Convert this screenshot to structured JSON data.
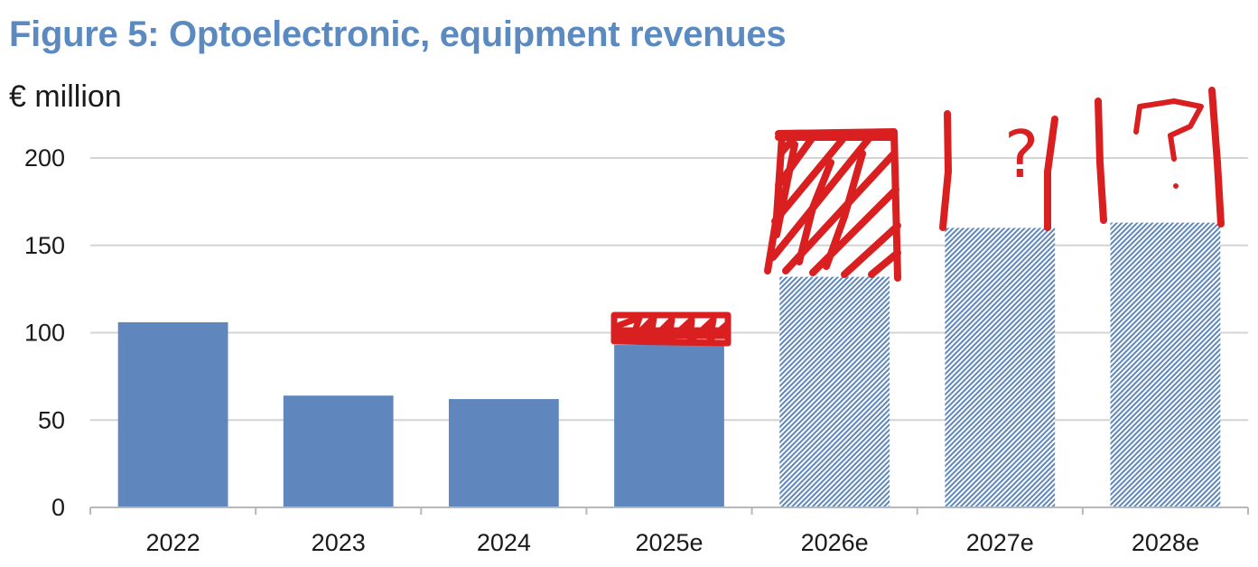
{
  "title": "Figure 5: Optoelectronic, equipment revenues",
  "unit": "€ million",
  "colors": {
    "title": "#5b8ac0",
    "bar": "#5f87bd",
    "annotation": "#d91f1f",
    "grid": "#d4d4d4"
  },
  "chart_data": {
    "type": "bar",
    "title": "Figure 5: Optoelectronic, equipment revenues",
    "ylabel": "€ million",
    "xlabel": "",
    "categories": [
      "2022",
      "2023",
      "2024",
      "2025e",
      "2026e",
      "2027e",
      "2028e"
    ],
    "values": [
      106,
      64,
      62,
      93,
      132,
      160,
      163
    ],
    "hatched": [
      false,
      false,
      false,
      false,
      true,
      true,
      true
    ],
    "ylim": [
      0,
      200
    ],
    "yticks": [
      0,
      50,
      100,
      150,
      200
    ],
    "grid": true,
    "legend": "none"
  },
  "annotations": {
    "question_marks": [
      "?",
      "?"
    ]
  }
}
